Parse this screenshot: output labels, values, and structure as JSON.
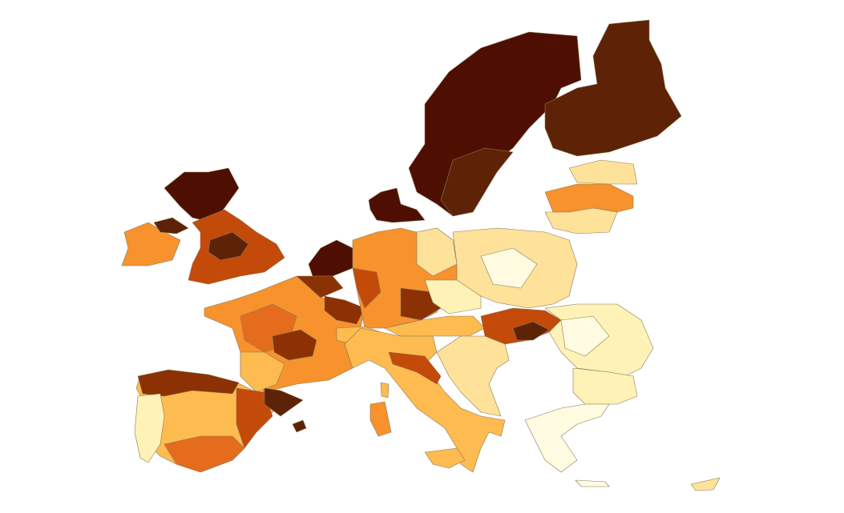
{
  "map": {
    "type": "choropleth",
    "legend": "none",
    "color_scale": [
      "#4e0f02",
      "#5e2206",
      "#8b3104",
      "#c44a0a",
      "#e56c1c",
      "#f7922d",
      "#fdbb50",
      "#fee29a",
      "#fff2b7",
      "#fffbe0"
    ]
  }
}
